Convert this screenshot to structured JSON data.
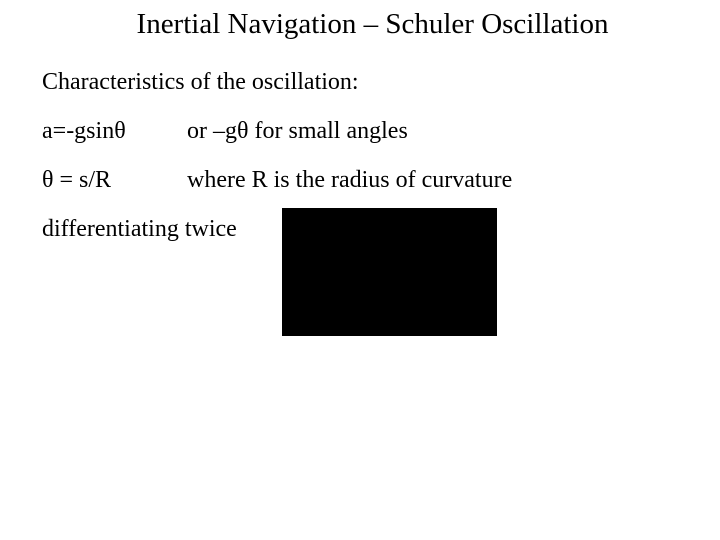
{
  "title": "Inertial Navigation – Schuler Oscillation",
  "subtitle": "Characteristics of the oscillation:",
  "rows": [
    {
      "left": "a=-gsinθ",
      "right": "or –gθ for small angles"
    },
    {
      "left": "θ = s/R",
      "right": "where R is the radius of curvature"
    }
  ],
  "diff_text": "differentiating twice",
  "colors": {
    "background": "#ffffff",
    "text": "#000000",
    "box": "#000000"
  },
  "typography": {
    "font_family": "Times New Roman",
    "title_fontsize": 29,
    "body_fontsize": 24
  },
  "layout": {
    "slide_width": 720,
    "slide_height": 540,
    "black_box_width": 215,
    "black_box_height": 128
  }
}
